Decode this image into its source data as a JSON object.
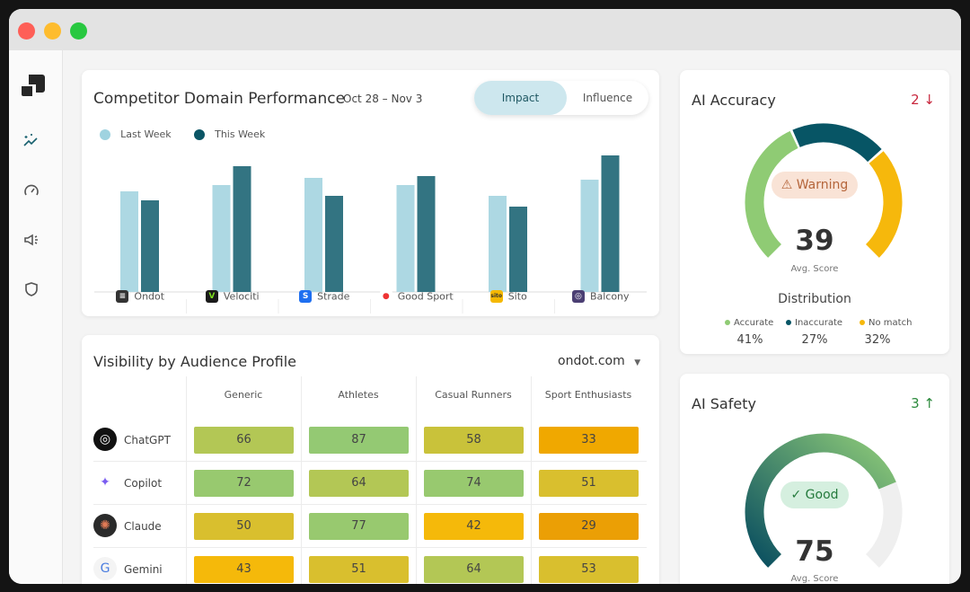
{
  "window": {
    "controls": [
      "close",
      "minimize",
      "maximize"
    ]
  },
  "sidebar": {
    "items": [
      {
        "icon": "sparkle-chart-icon",
        "active": true
      },
      {
        "icon": "gauge-icon"
      },
      {
        "icon": "megaphone-icon"
      },
      {
        "icon": "shield-icon"
      }
    ]
  },
  "competitor": {
    "title": "Competitor Domain Performance",
    "date_range": "Oct 28 – Nov 3",
    "tabs": [
      {
        "label": "Impact",
        "active": true
      },
      {
        "label": "Influence"
      }
    ]
  },
  "chart_data": {
    "type": "bar",
    "title": "Competitor Domain Performance",
    "categories": [
      "Ondot",
      "Velociti",
      "Strade",
      "Good Sport",
      "Sito",
      "Balcony"
    ],
    "series": [
      {
        "name": "Last Week",
        "color": "#add8e3",
        "values": [
          112,
          119,
          127,
          119,
          107,
          125
        ]
      },
      {
        "name": "This Week",
        "color": "#337482",
        "values": [
          102,
          140,
          107,
          129,
          95,
          152
        ]
      }
    ],
    "ylim": [
      0,
      160
    ],
    "grid": false,
    "legend": "top-left"
  },
  "visibility": {
    "title": "Visibility by Audience Profile",
    "domain_select": "ondot.com",
    "columns": [
      "Generic",
      "Athletes",
      "Casual Runners",
      "Sport Enthusiasts"
    ],
    "rows": [
      {
        "name": "ChatGPT",
        "values": [
          66,
          87,
          58,
          33
        ],
        "colors": [
          "#b3c755",
          "#94c973",
          "#c9c23a",
          "#f0a800"
        ]
      },
      {
        "name": "Copilot",
        "values": [
          72,
          64,
          74,
          51
        ],
        "colors": [
          "#98c96f",
          "#b3c755",
          "#98c96f",
          "#d9bf2e"
        ]
      },
      {
        "name": "Claude",
        "values": [
          50,
          77,
          42,
          29
        ],
        "colors": [
          "#d9bf2e",
          "#98c96f",
          "#f5b90a",
          "#eb9f05"
        ]
      },
      {
        "name": "Gemini",
        "values": [
          43,
          51,
          64,
          53
        ],
        "colors": [
          "#f5b90a",
          "#d9bf2e",
          "#b3c755",
          "#d9bf2e"
        ]
      }
    ]
  },
  "accuracy": {
    "title": "AI Accuracy",
    "change": "2",
    "change_dir": "down",
    "status": "Warning",
    "score": "39",
    "score_label": "Avg. Score",
    "distribution_title": "Distribution",
    "distribution": [
      {
        "label": "Accurate",
        "value": "41%",
        "pct": 41,
        "color": "#8fcb74"
      },
      {
        "label": "Inaccurate",
        "value": "27%",
        "pct": 27,
        "color": "#075565"
      },
      {
        "label": "No match",
        "value": "32%",
        "pct": 32,
        "color": "#f6b80c"
      }
    ]
  },
  "safety": {
    "title": "AI Safety",
    "change": "3",
    "change_dir": "up",
    "status": "Good",
    "score": "75",
    "score_label": "Avg. Score",
    "fill_pct": 75
  }
}
